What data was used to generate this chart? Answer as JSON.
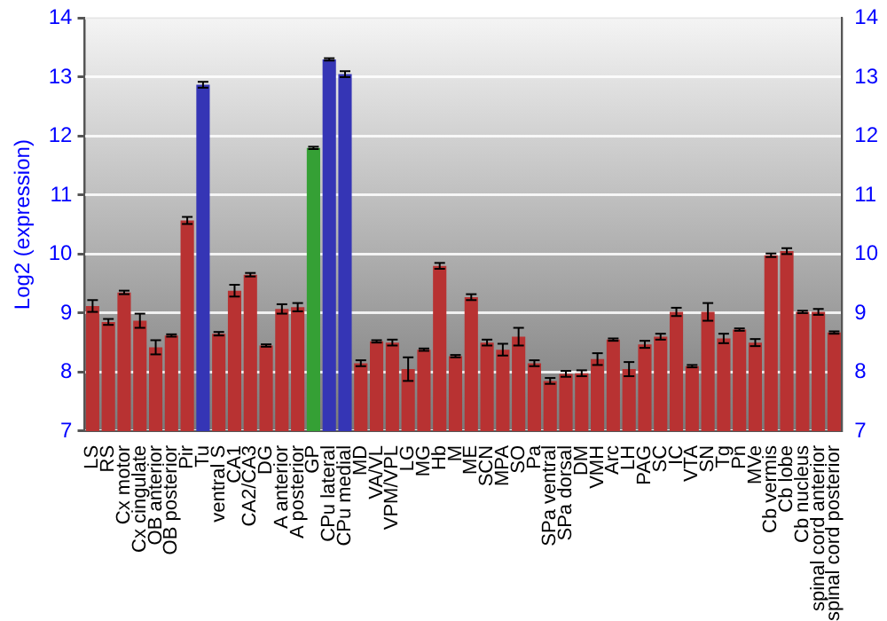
{
  "chart_data": {
    "type": "bar",
    "ylabel": "Log2 (expression)",
    "categories": [
      "LS",
      "RS",
      "Cx motor",
      "Cx cingulate",
      "OB anterior",
      "OB posterior",
      "Pir",
      "Tu",
      "ventral S",
      "CA1",
      "CA2/CA3",
      "DG",
      "A anterior",
      "A posterior",
      "GP",
      "CPu lateral",
      "CPu medial",
      "MD",
      "VA/VL",
      "VPM/VPL",
      "LG",
      "MG",
      "Hb",
      "M",
      "ME",
      "SCN",
      "MPA",
      "SO",
      "Pa",
      "SPa ventral",
      "SPa dorsal",
      "DM",
      "VMH",
      "Arc",
      "LH",
      "PAG",
      "SC",
      "IC",
      "VTA",
      "SN",
      "Tg",
      "Pn",
      "MVe",
      "Cb vermis",
      "Cb lobe",
      "Cb nucleus",
      "spinal cord anterior",
      "spinal cord posterior"
    ],
    "values": [
      9.12,
      8.85,
      9.35,
      8.87,
      8.42,
      8.62,
      10.57,
      12.87,
      8.65,
      9.38,
      9.65,
      8.45,
      9.07,
      9.1,
      11.8,
      13.3,
      13.05,
      8.15,
      8.52,
      8.5,
      8.05,
      8.38,
      9.8,
      8.27,
      9.27,
      8.5,
      8.38,
      8.6,
      8.15,
      7.85,
      7.97,
      7.98,
      8.22,
      8.55,
      8.05,
      8.47,
      8.6,
      9.02,
      8.1,
      9.02,
      8.57,
      8.72,
      8.5,
      9.98,
      10.05,
      9.02,
      9.02,
      8.67
    ],
    "errors": [
      0.1,
      0.05,
      0.03,
      0.12,
      0.12,
      0.02,
      0.06,
      0.05,
      0.03,
      0.1,
      0.03,
      0.02,
      0.08,
      0.07,
      0.02,
      0.02,
      0.05,
      0.05,
      0.02,
      0.05,
      0.2,
      0.02,
      0.05,
      0.02,
      0.05,
      0.05,
      0.1,
      0.15,
      0.05,
      0.05,
      0.05,
      0.05,
      0.1,
      0.02,
      0.12,
      0.06,
      0.05,
      0.07,
      0.02,
      0.15,
      0.08,
      0.02,
      0.06,
      0.03,
      0.05,
      0.02,
      0.05,
      0.02
    ],
    "colors": [
      "#b83232",
      "#b83232",
      "#b83232",
      "#b83232",
      "#b83232",
      "#b83232",
      "#b83232",
      "#3535b5",
      "#b83232",
      "#b83232",
      "#b83232",
      "#b83232",
      "#b83232",
      "#b83232",
      "#35a035",
      "#3535b5",
      "#3535b5",
      "#b83232",
      "#b83232",
      "#b83232",
      "#b83232",
      "#b83232",
      "#b83232",
      "#b83232",
      "#b83232",
      "#b83232",
      "#b83232",
      "#b83232",
      "#b83232",
      "#b83232",
      "#b83232",
      "#b83232",
      "#b83232",
      "#b83232",
      "#b83232",
      "#b83232",
      "#b83232",
      "#b83232",
      "#b83232",
      "#b83232",
      "#b83232",
      "#b83232",
      "#b83232",
      "#b83232",
      "#b83232",
      "#b83232",
      "#b83232",
      "#b83232"
    ],
    "ylim": [
      7,
      14
    ],
    "yticks": [
      7,
      8,
      9,
      10,
      11,
      12,
      13,
      14
    ],
    "y2lim": [
      7,
      14
    ],
    "y2ticks": [
      7,
      8,
      9,
      10,
      11,
      12,
      13,
      14
    ],
    "grid": "y",
    "legend": false
  }
}
